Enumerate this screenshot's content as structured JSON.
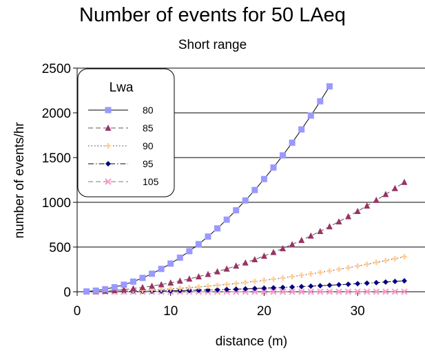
{
  "chart_data": {
    "type": "line",
    "title": "Number of events for 50 LAeq",
    "subtitle": "Short range",
    "xlabel": "distance (m)",
    "ylabel": "number of events/hr",
    "xlim": [
      0,
      35
    ],
    "ylim": [
      0,
      2500
    ],
    "xticks": [
      0,
      10,
      20,
      30
    ],
    "yticks": [
      0,
      500,
      1000,
      1500,
      2000,
      2500
    ],
    "grid": "horizontal",
    "legend": {
      "title": "Lwa",
      "position": "top-left"
    },
    "series": [
      {
        "name": "80",
        "color": "#9999ff",
        "marker": "square",
        "line": "solid",
        "x": [
          1,
          2,
          3,
          4,
          5,
          6,
          7,
          8,
          9,
          10,
          11,
          12,
          13,
          14,
          15,
          16,
          17,
          18,
          19,
          20,
          21,
          22,
          23,
          24,
          25,
          26,
          27
        ],
        "y": [
          3.2,
          12.6,
          28.4,
          50.4,
          78.8,
          113.4,
          154.4,
          201.6,
          255.2,
          315,
          381.2,
          453.6,
          532.4,
          617.4,
          708.8,
          806.4,
          910.4,
          1020.6,
          1137.2,
          1260,
          1389.2,
          1524.6,
          1666.2,
          1814.4,
          1968.8,
          2129.4,
          2296.4
        ]
      },
      {
        "name": "85",
        "color": "#993366",
        "marker": "triangle",
        "line": "dashed",
        "x": [
          1,
          2,
          3,
          4,
          5,
          6,
          7,
          8,
          9,
          10,
          11,
          12,
          13,
          14,
          15,
          16,
          17,
          18,
          19,
          20,
          21,
          22,
          23,
          24,
          25,
          26,
          27,
          28,
          29,
          30,
          31,
          32,
          33,
          34,
          35
        ],
        "y": [
          1,
          4,
          9,
          16,
          25,
          36,
          49,
          64,
          81,
          100,
          121,
          144,
          169,
          196,
          225,
          256,
          289,
          324,
          361,
          400,
          441,
          484,
          529,
          576,
          625,
          676,
          729,
          784,
          841,
          900,
          961,
          1024,
          1089,
          1156,
          1225
        ]
      },
      {
        "name": "90",
        "color": "#ffcc99",
        "marker": "plus",
        "line": "dotted",
        "x": [
          1,
          2,
          3,
          4,
          5,
          6,
          7,
          8,
          9,
          10,
          11,
          12,
          13,
          14,
          15,
          16,
          17,
          18,
          19,
          20,
          21,
          22,
          23,
          24,
          25,
          26,
          27,
          28,
          29,
          30,
          31,
          32,
          33,
          34,
          35
        ],
        "y": [
          0.3,
          1.3,
          2.9,
          5.1,
          8,
          11.5,
          15.7,
          20.5,
          25.9,
          32,
          38.7,
          46.1,
          54.1,
          62.7,
          72,
          81.9,
          92.5,
          103.7,
          115.5,
          128,
          141.1,
          154.9,
          169.3,
          184.3,
          200,
          216.3,
          233.3,
          250.9,
          269.1,
          288,
          307.5,
          327.7,
          348.5,
          369.9,
          392
        ]
      },
      {
        "name": "95",
        "color": "#000080",
        "marker": "diamond",
        "line": "dashdot",
        "x": [
          1,
          2,
          3,
          4,
          5,
          6,
          7,
          8,
          9,
          10,
          11,
          12,
          13,
          14,
          15,
          16,
          17,
          18,
          19,
          20,
          21,
          22,
          23,
          24,
          25,
          26,
          27,
          28,
          29,
          30,
          31,
          32,
          33,
          34,
          35
        ],
        "y": [
          0.1,
          0.4,
          0.9,
          1.6,
          2.5,
          3.6,
          4.9,
          6.4,
          8.1,
          10,
          12.1,
          14.4,
          16.9,
          19.6,
          22.5,
          25.6,
          28.9,
          32.4,
          36.1,
          40,
          44.1,
          48.4,
          52.9,
          57.6,
          62.5,
          67.6,
          72.9,
          78.4,
          84.1,
          90,
          96.1,
          102.4,
          108.9,
          115.6,
          122.5
        ]
      },
      {
        "name": "105",
        "color": "#ff99cc",
        "marker": "x",
        "line": "dashed",
        "x": [
          1,
          2,
          3,
          4,
          5,
          6,
          7,
          8,
          9,
          10,
          11,
          12,
          13,
          14,
          15,
          16,
          17,
          18,
          19,
          20,
          21,
          22,
          23,
          24,
          25,
          26,
          27,
          28,
          29,
          30,
          31,
          32,
          33,
          34,
          35
        ],
        "y": [
          0,
          0,
          0,
          0,
          0,
          0.1,
          0.1,
          0.1,
          0.1,
          0.1,
          0.1,
          0.1,
          0.2,
          0.2,
          0.2,
          0.3,
          0.3,
          0.3,
          0.4,
          0.4,
          0.4,
          0.5,
          0.5,
          0.6,
          0.6,
          0.7,
          0.7,
          0.8,
          0.8,
          0.9,
          1,
          1,
          1.1,
          1.2,
          1.2
        ]
      }
    ]
  }
}
